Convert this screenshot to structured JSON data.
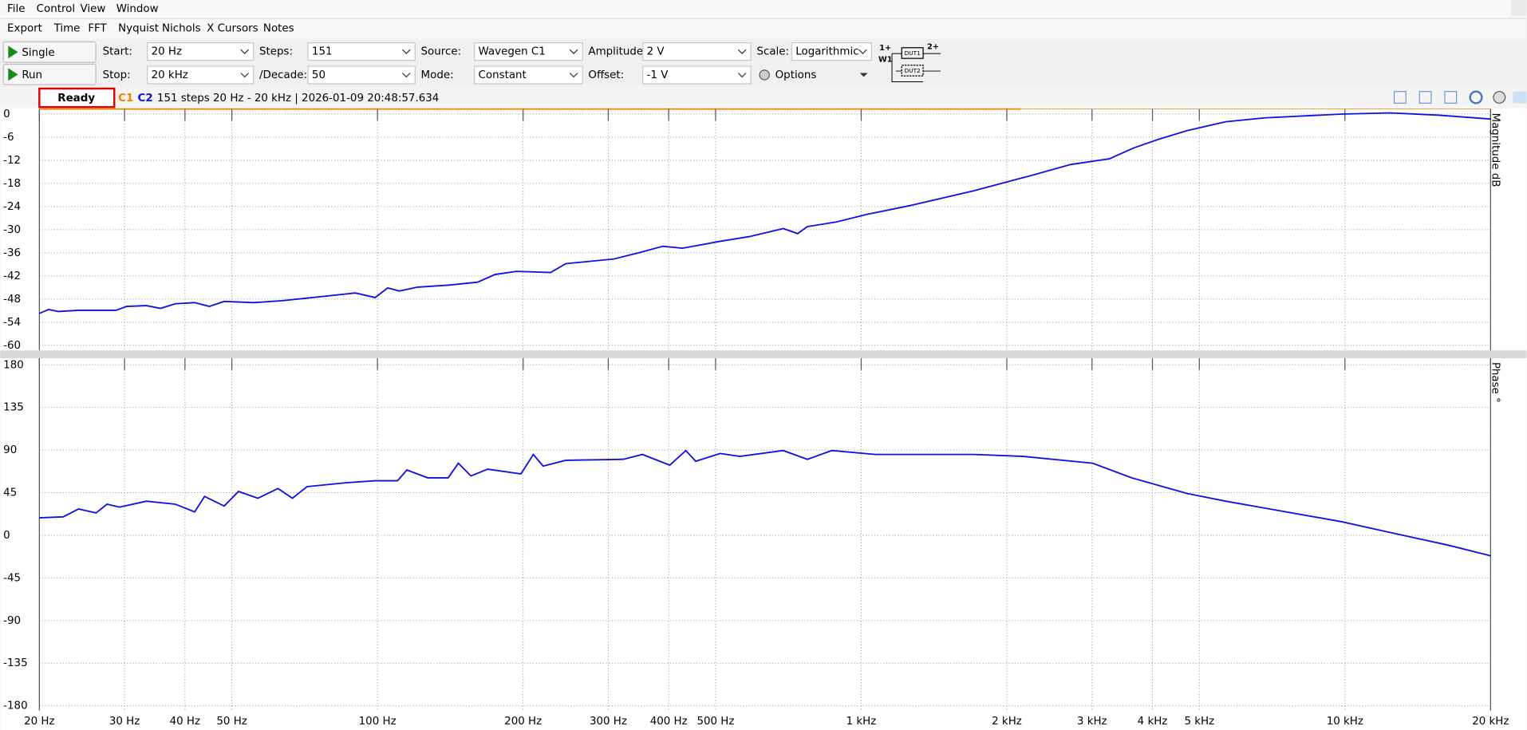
{
  "menu": [
    "File",
    "Control",
    "View",
    "Window"
  ],
  "tabs": [
    "Export",
    "Time",
    "FFT",
    "Nyquist",
    "Nichols",
    "X Cursors",
    "Notes"
  ],
  "toolbar": {
    "single": "Single",
    "run": "Run",
    "rows": [
      [
        {
          "label": "Start:",
          "value": "20 Hz"
        },
        {
          "label": "Steps:",
          "value": "151"
        },
        {
          "label": "Source:",
          "value": "Wavegen C1"
        },
        {
          "label": "Amplitude:",
          "value": "2 V"
        },
        {
          "label": "Scale:",
          "value": "Logarithmic"
        }
      ],
      [
        {
          "label": "Stop:",
          "value": "20 kHz"
        },
        {
          "label": "/Decade:",
          "value": "50"
        },
        {
          "label": "Mode:",
          "value": "Constant"
        },
        {
          "label": "Offset:",
          "value": "-1 V"
        }
      ]
    ],
    "options": "Options"
  },
  "diagram": {
    "in1": "1+",
    "w1": "W1",
    "dut1": "DUT1",
    "in2": "2+",
    "dut2": "DUT2"
  },
  "status": {
    "state": "Ready",
    "channels": [
      "C1",
      "C2"
    ],
    "info": "151 steps  20 Hz - 20 kHz | 2026-01-09 20:48:57.634"
  },
  "chart_data": [
    {
      "type": "line",
      "y_label": "Magnitude dB",
      "color": "#1010e0",
      "log_x": true,
      "grid": true,
      "xlim": [
        20,
        20000
      ],
      "ylim": [
        -61.3,
        1.3
      ],
      "xticks": [
        20,
        30,
        40,
        50,
        100,
        200,
        300,
        400,
        500,
        1000,
        2000,
        3000,
        4000,
        5000,
        10000,
        20000
      ],
      "yticks": [
        0,
        -6,
        -12,
        -18,
        -24,
        -30,
        -36,
        -42,
        -48,
        -54,
        -60
      ],
      "x": [
        20,
        20.9,
        21.9,
        24.1,
        28.8,
        30.3,
        33.3,
        35.6,
        38.2,
        41.9,
        44.9,
        48.2,
        55.5,
        63.6,
        80.1,
        90,
        98.9,
        105,
        111,
        121,
        140,
        161,
        175,
        194,
        228,
        245,
        308,
        346,
        389,
        427,
        511,
        587,
        690,
        739,
        774,
        888,
        1029,
        1267,
        1709,
        2254,
        2711,
        3261,
        3659,
        4105,
        4714,
        5666,
        6810,
        9843,
        12390,
        15590,
        20000
      ],
      "values": [
        -51.7,
        -50.7,
        -51.2,
        -50.9,
        -50.9,
        -49.9,
        -49.7,
        -50.4,
        -49.2,
        -48.9,
        -49.9,
        -48.6,
        -48.9,
        -48.4,
        -47.1,
        -46.4,
        -47.6,
        -45.1,
        -45.9,
        -44.9,
        -44.4,
        -43.6,
        -41.6,
        -40.8,
        -41.1,
        -38.8,
        -37.6,
        -36.0,
        -34.3,
        -34.8,
        -33.0,
        -31.8,
        -29.7,
        -31.0,
        -29.2,
        -28.0,
        -26.0,
        -23.7,
        -19.9,
        -15.9,
        -13.1,
        -11.6,
        -8.8,
        -6.6,
        -4.3,
        -2.0,
        -1.0,
        0,
        0.3,
        -0.3,
        -1.3
      ]
    },
    {
      "type": "line",
      "y_label": "Phase °",
      "color": "#1010e0",
      "log_x": true,
      "grid": true,
      "xlim": [
        20,
        20000
      ],
      "ylim": [
        -185,
        187
      ],
      "xticks": [
        {
          "value": 20,
          "label": "20 Hz"
        },
        {
          "value": 30,
          "label": "30 Hz"
        },
        {
          "value": 40,
          "label": "40 Hz"
        },
        {
          "value": 50,
          "label": "50 Hz"
        },
        {
          "value": 100,
          "label": "100 Hz"
        },
        {
          "value": 200,
          "label": "200 Hz"
        },
        {
          "value": 300,
          "label": "300 Hz"
        },
        {
          "value": 400,
          "label": "400 Hz"
        },
        {
          "value": 500,
          "label": "500 Hz"
        },
        {
          "value": 1000,
          "label": "1 kHz"
        },
        {
          "value": 2000,
          "label": "2 kHz"
        },
        {
          "value": 3000,
          "label": "3 kHz"
        },
        {
          "value": 4000,
          "label": "4 kHz"
        },
        {
          "value": 5000,
          "label": "5 kHz"
        },
        {
          "value": 10000,
          "label": "10 kHz"
        },
        {
          "value": 20000,
          "label": "20 kHz"
        }
      ],
      "yticks": [
        180,
        135,
        90,
        45,
        0,
        -45,
        -90,
        -135,
        -180
      ],
      "x": [
        20,
        22.4,
        24.1,
        26.2,
        27.6,
        29.3,
        33.3,
        38.2,
        41.9,
        43.9,
        48.2,
        51.6,
        56.6,
        62.3,
        66.7,
        71.5,
        86,
        98.9,
        110,
        115,
        127,
        140,
        147,
        156,
        169,
        198,
        210,
        220,
        245,
        322,
        353,
        402,
        434,
        455,
        511,
        561,
        690,
        774,
        869,
        1070,
        1709,
        2164,
        3009,
        3622,
        4714,
        5666,
        6810,
        9843,
        12390,
        16310,
        20000
      ],
      "values": [
        18.5,
        19.5,
        27.8,
        23.6,
        32.9,
        29.8,
        36.0,
        32.9,
        24.7,
        41.1,
        30.9,
        46.3,
        39.1,
        49.4,
        39.1,
        51.4,
        55.5,
        57.6,
        57.6,
        68.9,
        60.7,
        60.7,
        76.1,
        62.7,
        69.9,
        64.8,
        85.4,
        73.0,
        79.2,
        80.2,
        85.4,
        74.1,
        89.5,
        78.2,
        86.4,
        83.3,
        89.5,
        80.2,
        89.5,
        85.4,
        85.4,
        83.3,
        76.1,
        60.7,
        44.2,
        36.0,
        28.8,
        14.4,
        3.1,
        -10.3,
        -21.6
      ]
    }
  ]
}
